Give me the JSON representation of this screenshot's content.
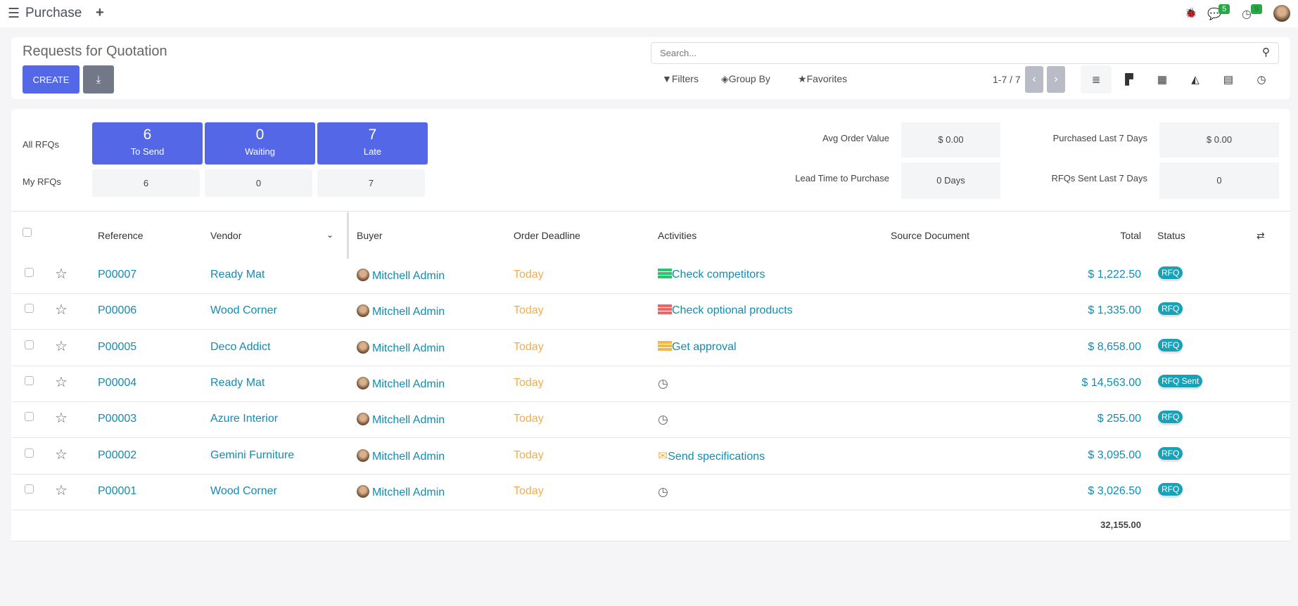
{
  "topbar": {
    "app_title": "Purchase",
    "menu_icon": "hamburger-icon",
    "add_icon": "plus-icon",
    "messages_count": "5",
    "activities_count": "9"
  },
  "control": {
    "title": "Requests for Quotation",
    "create_label": "CREATE",
    "search_placeholder": "Search...",
    "filters": "Filters",
    "group_by": "Group By",
    "favorites": "Favorites",
    "pager": "1-7 / 7"
  },
  "dashboard": {
    "all_rfqs_label": "All RFQs",
    "my_rfqs_label": "My RFQs",
    "tiles": [
      {
        "count": "6",
        "label": "To Send",
        "mine": "6"
      },
      {
        "count": "0",
        "label": "Waiting",
        "mine": "0"
      },
      {
        "count": "7",
        "label": "Late",
        "mine": "7"
      }
    ],
    "stats": [
      {
        "label": "Avg Order Value",
        "value": "$ 0.00"
      },
      {
        "label": "Purchased Last 7 Days",
        "value": "$ 0.00"
      },
      {
        "label": "Lead Time to Purchase",
        "value": "0 Days"
      },
      {
        "label": "RFQs Sent Last 7 Days",
        "value": "0"
      }
    ]
  },
  "table": {
    "columns": {
      "reference": "Reference",
      "vendor": "Vendor",
      "buyer": "Buyer",
      "deadline": "Order Deadline",
      "activities": "Activities",
      "source": "Source Document",
      "total": "Total",
      "status": "Status"
    },
    "rows": [
      {
        "reference": "P00007",
        "vendor": "Ready Mat",
        "buyer": "Mitchell Admin",
        "deadline": "Today",
        "activity": "Check competitors",
        "activity_icon": "todo-list-icon",
        "activity_color": "#28c76f",
        "total": "$ 1,222.50",
        "status": "RFQ"
      },
      {
        "reference": "P00006",
        "vendor": "Wood Corner",
        "buyer": "Mitchell Admin",
        "deadline": "Today",
        "activity": "Check optional products",
        "activity_icon": "todo-list-icon",
        "activity_color": "#f06464",
        "total": "$ 1,335.00",
        "status": "RFQ"
      },
      {
        "reference": "P00005",
        "vendor": "Deco Addict",
        "buyer": "Mitchell Admin",
        "deadline": "Today",
        "activity": "Get approval",
        "activity_icon": "todo-list-icon",
        "activity_color": "#f0b849",
        "total": "$ 8,658.00",
        "status": "RFQ"
      },
      {
        "reference": "P00004",
        "vendor": "Ready Mat",
        "buyer": "Mitchell Admin",
        "deadline": "Today",
        "activity": "",
        "activity_icon": "clock-icon",
        "total": "$ 14,563.00",
        "status": "RFQ Sent"
      },
      {
        "reference": "P00003",
        "vendor": "Azure Interior",
        "buyer": "Mitchell Admin",
        "deadline": "Today",
        "activity": "",
        "activity_icon": "clock-icon",
        "total": "$ 255.00",
        "status": "RFQ"
      },
      {
        "reference": "P00002",
        "vendor": "Gemini Furniture",
        "buyer": "Mitchell Admin",
        "deadline": "Today",
        "activity": "Send specifications",
        "activity_icon": "envelope-icon",
        "activity_color": "#f0b849",
        "total": "$ 3,095.00",
        "status": "RFQ"
      },
      {
        "reference": "P00001",
        "vendor": "Wood Corner",
        "buyer": "Mitchell Admin",
        "deadline": "Today",
        "activity": "",
        "activity_icon": "clock-icon",
        "total": "$ 3,026.50",
        "status": "RFQ"
      }
    ],
    "sum_total": "32,155.00"
  },
  "colors": {
    "primary": "#5468e7",
    "link": "#138cb0",
    "today": "#f0ad4e",
    "badge": "#17a2b8"
  }
}
